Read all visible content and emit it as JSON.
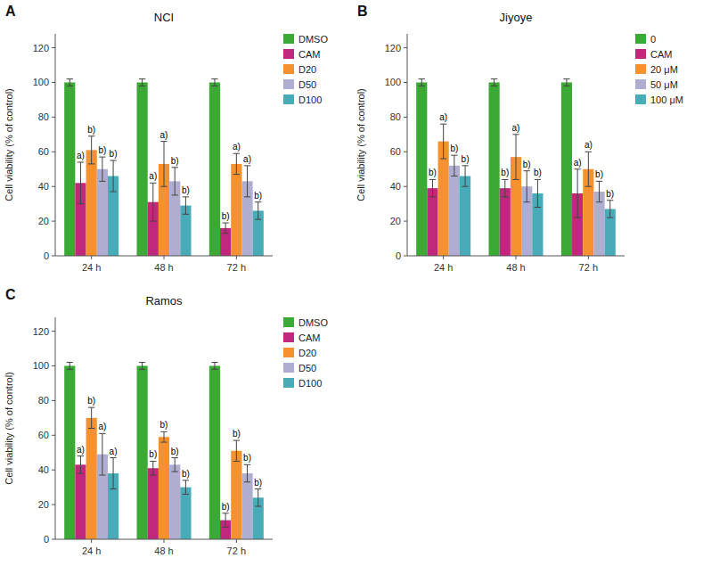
{
  "chart_data": [
    {
      "type": "bar",
      "label": "A",
      "title": "NCI",
      "categories": [
        "24 h",
        "48 h",
        "72 h"
      ],
      "y_label": "Cell viability (% of control)",
      "ylim": [
        0,
        128
      ],
      "yticks": [
        0,
        20,
        40,
        60,
        80,
        100,
        120
      ],
      "grid": false,
      "legend": "upper right",
      "series": [
        {
          "name": "DMSO",
          "color": "#3aaa35",
          "values": [
            100,
            100,
            100
          ],
          "errors": [
            2,
            2,
            2
          ],
          "annotations": [
            null,
            null,
            null
          ]
        },
        {
          "name": "CAM",
          "color": "#c0287d",
          "values": [
            42,
            31,
            16
          ],
          "errors": [
            12,
            11,
            3
          ],
          "annotations": [
            "a)",
            "a)",
            "b)"
          ]
        },
        {
          "name": "D20",
          "color": "#f5922f",
          "values": [
            61,
            53,
            53
          ],
          "errors": [
            8,
            13,
            6
          ],
          "annotations": [
            "b)",
            "a)",
            "a)"
          ]
        },
        {
          "name": "D50",
          "color": "#b0aed0",
          "values": [
            50,
            43,
            43
          ],
          "errors": [
            7,
            8,
            9
          ],
          "annotations": [
            "b)",
            "b)",
            "a)"
          ]
        },
        {
          "name": "D100",
          "color": "#4aabb8",
          "values": [
            46,
            29,
            26
          ],
          "errors": [
            9,
            5,
            5
          ],
          "annotations": [
            "b)",
            "b)",
            "b)"
          ]
        }
      ]
    },
    {
      "type": "bar",
      "label": "B",
      "title": "Jiyoye",
      "categories": [
        "24 h",
        "48 h",
        "72 h"
      ],
      "y_label": "Cell viability (% of control)",
      "ylim": [
        0,
        128
      ],
      "yticks": [
        0,
        20,
        40,
        60,
        80,
        100,
        120
      ],
      "grid": false,
      "legend": "upper right",
      "series": [
        {
          "name": "0",
          "color": "#3aaa35",
          "values": [
            100,
            100,
            100
          ],
          "errors": [
            2,
            2,
            2
          ],
          "annotations": [
            null,
            null,
            null
          ]
        },
        {
          "name": "CAM",
          "color": "#c0287d",
          "values": [
            39,
            39,
            36
          ],
          "errors": [
            5,
            5,
            14
          ],
          "annotations": [
            "b)",
            "b)",
            "a)"
          ]
        },
        {
          "name": "20 μM",
          "color": "#f5922f",
          "values": [
            66,
            57,
            50
          ],
          "errors": [
            10,
            13,
            10
          ],
          "annotations": [
            "a)",
            "a)",
            "a)"
          ]
        },
        {
          "name": "50 μM",
          "color": "#b0aed0",
          "values": [
            52,
            40,
            37
          ],
          "errors": [
            6,
            9,
            6
          ],
          "annotations": [
            "b)",
            "b)",
            "b)"
          ]
        },
        {
          "name": "100 μM",
          "color": "#4aabb8",
          "values": [
            46,
            36,
            27
          ],
          "errors": [
            6,
            8,
            5
          ],
          "annotations": [
            "b)",
            "b)",
            "b)"
          ]
        }
      ]
    },
    {
      "type": "bar",
      "label": "C",
      "title": "Ramos",
      "categories": [
        "24 h",
        "48 h",
        "72 h"
      ],
      "y_label": "Cell viability (% of control)",
      "ylim": [
        0,
        128
      ],
      "yticks": [
        0,
        20,
        40,
        60,
        80,
        100,
        120
      ],
      "grid": false,
      "legend": "upper right",
      "series": [
        {
          "name": "DMSO",
          "color": "#3aaa35",
          "values": [
            100,
            100,
            100
          ],
          "errors": [
            2,
            2,
            2
          ],
          "annotations": [
            null,
            null,
            null
          ]
        },
        {
          "name": "CAM",
          "color": "#c0287d",
          "values": [
            43,
            41,
            11
          ],
          "errors": [
            5,
            4,
            4
          ],
          "annotations": [
            "a)",
            "b)",
            "b)"
          ]
        },
        {
          "name": "D20",
          "color": "#f5922f",
          "values": [
            70,
            59,
            51
          ],
          "errors": [
            6,
            3,
            6
          ],
          "annotations": [
            "b)",
            "b)",
            "b)"
          ]
        },
        {
          "name": "D50",
          "color": "#b0aed0",
          "values": [
            49,
            43,
            38
          ],
          "errors": [
            12,
            4,
            5
          ],
          "annotations": [
            "a)",
            "b)",
            "b)"
          ]
        },
        {
          "name": "D100",
          "color": "#4aabb8",
          "values": [
            38,
            30,
            24
          ],
          "errors": [
            9,
            4,
            5
          ],
          "annotations": [
            "a)",
            "b)",
            "b)"
          ]
        }
      ]
    }
  ]
}
